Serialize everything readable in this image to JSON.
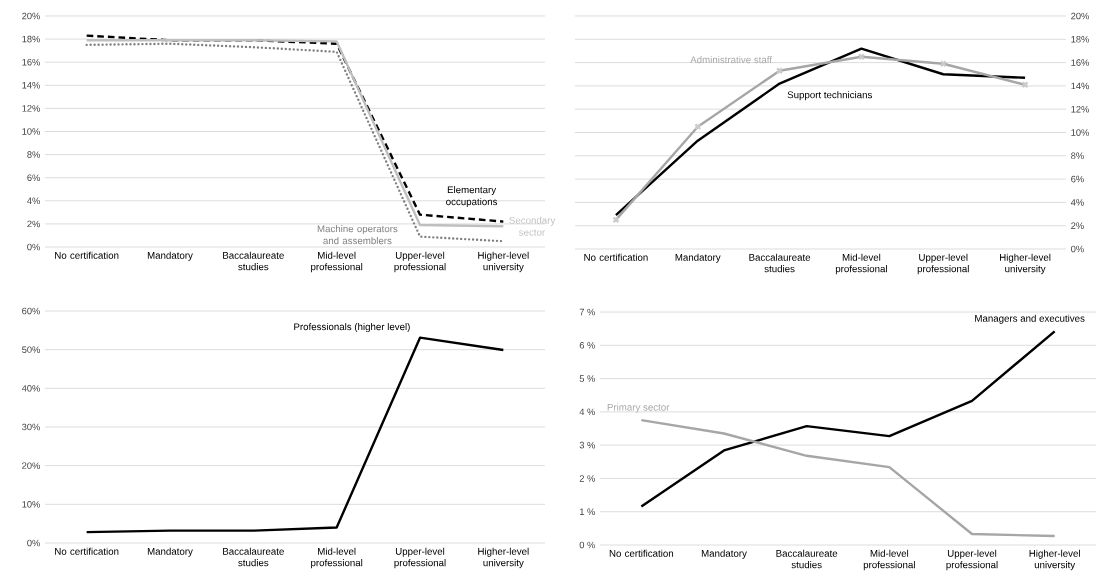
{
  "chart_data": [
    {
      "type": "line",
      "categories": [
        "No certification",
        "Mandatory",
        "Baccalaureate studies",
        "Mid-level professional",
        "Upper-level professional",
        "Higher-level university"
      ],
      "series": [
        {
          "name": "Elementary occupations",
          "color": "#000000",
          "line_style": "dashed",
          "values": [
            18.3,
            17.9,
            17.9,
            17.6,
            2.8,
            2.2
          ]
        },
        {
          "name": "Secondary sector",
          "color": "#bfbfbf",
          "line_style": "solid",
          "values": [
            17.9,
            17.9,
            17.9,
            17.8,
            1.9,
            1.8
          ]
        },
        {
          "name": "Machine operators and assemblers",
          "color": "#7f7f7f",
          "line_style": "dotted",
          "values": [
            17.5,
            17.6,
            17.3,
            16.9,
            0.9,
            0.5
          ]
        }
      ],
      "ylim": [
        0,
        20
      ],
      "yticks": [
        {
          "value": 0,
          "label": "0%"
        },
        {
          "value": 2,
          "label": "2%"
        },
        {
          "value": 4,
          "label": "4%"
        },
        {
          "value": 6,
          "label": "6%"
        },
        {
          "value": 8,
          "label": "8%"
        },
        {
          "value": 10,
          "label": "10%"
        },
        {
          "value": 12,
          "label": "12%"
        },
        {
          "value": 14,
          "label": "14%"
        },
        {
          "value": 16,
          "label": "16%"
        },
        {
          "value": 18,
          "label": "18%"
        },
        {
          "value": 20,
          "label": "20%"
        }
      ],
      "grid": "y",
      "legend": false
    },
    {
      "type": "line",
      "categories": [
        "No certification",
        "Mandatory",
        "Baccalaureate studies",
        "Mid-level professional",
        "Upper-level professional",
        "Higher-level university"
      ],
      "series": [
        {
          "name": "Support technicians",
          "color": "#000000",
          "axis": "y2",
          "values": [
            2.9,
            9.3,
            14.2,
            17.2,
            15.0,
            14.7
          ]
        },
        {
          "name": "Administrative staff",
          "color": "#a6a6a6",
          "axis": "y2",
          "marker": "cross",
          "values": [
            2.5,
            10.5,
            15.3,
            16.5,
            15.9,
            14.1
          ]
        }
      ],
      "y2lim": [
        0,
        20
      ],
      "y2ticks": [
        {
          "value": 0,
          "label": "0%"
        },
        {
          "value": 2,
          "label": "2%"
        },
        {
          "value": 4,
          "label": "4%"
        },
        {
          "value": 6,
          "label": "6%"
        },
        {
          "value": 8,
          "label": "8%"
        },
        {
          "value": 10,
          "label": "10%"
        },
        {
          "value": 12,
          "label": "12%"
        },
        {
          "value": 14,
          "label": "14%"
        },
        {
          "value": 16,
          "label": "16%"
        },
        {
          "value": 18,
          "label": "18%"
        },
        {
          "value": 20,
          "label": "20%"
        }
      ],
      "grid": "y",
      "legend": false
    },
    {
      "type": "line",
      "categories": [
        "No certification",
        "Mandatory",
        "Baccalaureate studies",
        "Mid-level professional",
        "Upper-level professional",
        "Higher-level university"
      ],
      "series": [
        {
          "name": "Professionals (higher level)",
          "color": "#000000",
          "values": [
            2.8,
            3.2,
            3.2,
            4.0,
            53.1,
            49.9
          ]
        }
      ],
      "ylim": [
        0,
        60
      ],
      "yticks": [
        {
          "value": 0,
          "label": "0%"
        },
        {
          "value": 10,
          "label": "10%"
        },
        {
          "value": 20,
          "label": "20%"
        },
        {
          "value": 30,
          "label": "30%"
        },
        {
          "value": 40,
          "label": "40%"
        },
        {
          "value": 50,
          "label": "50%"
        },
        {
          "value": 60,
          "label": "60%"
        }
      ],
      "grid": "y",
      "legend": false
    },
    {
      "type": "line",
      "categories": [
        "No certification",
        "Mandatory",
        "Baccalaureate studies",
        "Mid-level professional",
        "Upper-level professional",
        "Higher-level university"
      ],
      "series": [
        {
          "name": "Managers and executives",
          "color": "#000000",
          "values": [
            1.16,
            2.84,
            3.57,
            3.27,
            4.33,
            6.42
          ]
        },
        {
          "name": "Primary sector",
          "color": "#a6a6a6",
          "values": [
            3.75,
            3.35,
            2.68,
            2.34,
            0.33,
            0.27
          ]
        }
      ],
      "ylim": [
        0,
        7
      ],
      "yticks": [
        {
          "value": 0,
          "label": "0 %"
        },
        {
          "value": 1,
          "label": "1 %"
        },
        {
          "value": 2,
          "label": "2 %"
        },
        {
          "value": 3,
          "label": "3 %"
        },
        {
          "value": 4,
          "label": "4 %"
        },
        {
          "value": 5,
          "label": "5 %"
        },
        {
          "value": 6,
          "label": "6 %"
        },
        {
          "value": 7,
          "label": "7 %"
        }
      ],
      "grid": "y",
      "legend": false
    }
  ]
}
